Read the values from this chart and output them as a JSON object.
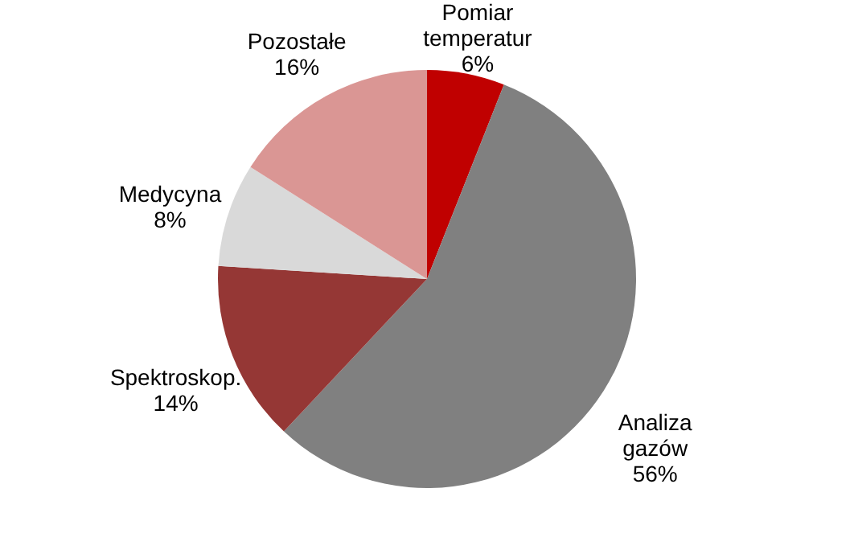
{
  "chart_data": {
    "type": "pie",
    "categories": [
      "Pomiar temperatur",
      "Analiza gazów",
      "Spektroskop.",
      "Medycyna",
      "Pozostałe"
    ],
    "values": [
      6,
      56,
      14,
      8,
      16
    ],
    "value_labels": [
      "6%",
      "56%",
      "14%",
      "8%",
      "16%"
    ],
    "colors": [
      "#c00000",
      "#808080",
      "#953735",
      "#d9d9d9",
      "#da9694"
    ],
    "legend": false
  }
}
